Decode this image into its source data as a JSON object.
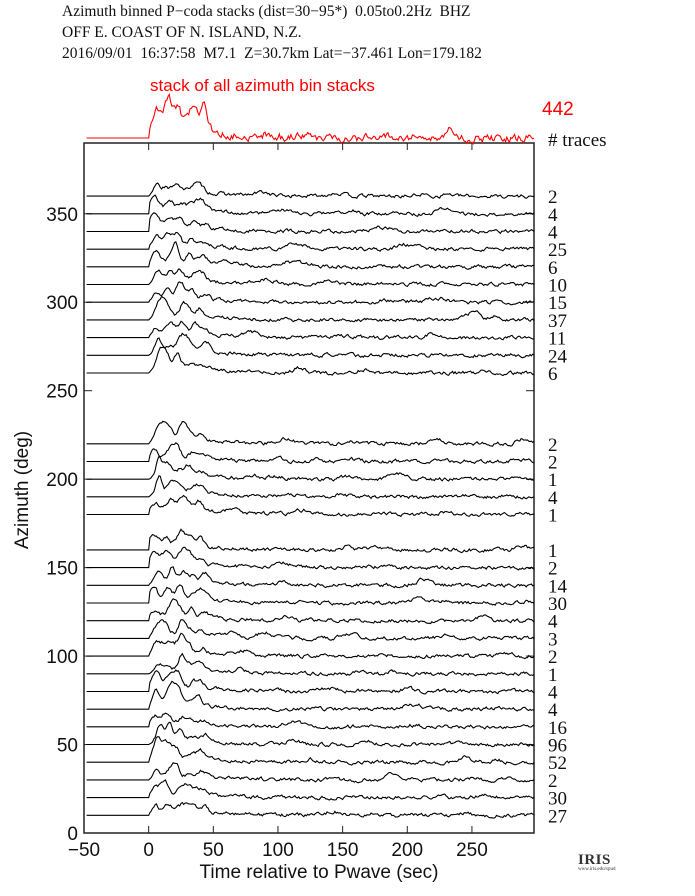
{
  "header": {
    "line1": "Azimuth binned P−coda stacks (dist=30−95*)  0.05to0.2Hz  BHZ",
    "line2": "OFF E. COAST OF N. ISLAND, N.Z.",
    "line3": "2016/09/01  16:37:58  M7.1  Z=30.7km Lat=−37.461 Lon=179.182"
  },
  "logo": {
    "name": "IRIS",
    "url_text": "www.iris.edu/spud"
  },
  "chart_data": {
    "type": "line",
    "title": "Azimuth binned P-coda stacks",
    "xlabel": "Time relative to Pwave (sec)",
    "ylabel": "Azimuth (deg)",
    "xlim": [
      -50,
      298
    ],
    "ylim": [
      0,
      390
    ],
    "xticks": [
      -50,
      0,
      50,
      100,
      150,
      200,
      250
    ],
    "yticks": [
      0,
      50,
      100,
      150,
      200,
      250,
      300,
      350
    ],
    "trace_color": "#000000",
    "stack": {
      "label": "stack of all azimuth bin stacks",
      "count": "442",
      "color": "#ff0000"
    },
    "count_header": "# traces",
    "traces": [
      {
        "azimuth": 360,
        "count": "2"
      },
      {
        "azimuth": 350,
        "count": "4"
      },
      {
        "azimuth": 340,
        "count": "4"
      },
      {
        "azimuth": 330,
        "count": "25"
      },
      {
        "azimuth": 320,
        "count": "6"
      },
      {
        "azimuth": 310,
        "count": "10"
      },
      {
        "azimuth": 300,
        "count": "15"
      },
      {
        "azimuth": 290,
        "count": "37"
      },
      {
        "azimuth": 280,
        "count": "11"
      },
      {
        "azimuth": 270,
        "count": "24"
      },
      {
        "azimuth": 260,
        "count": "6"
      },
      {
        "azimuth": 220,
        "count": "2"
      },
      {
        "azimuth": 210,
        "count": "2"
      },
      {
        "azimuth": 200,
        "count": "1"
      },
      {
        "azimuth": 190,
        "count": "4"
      },
      {
        "azimuth": 180,
        "count": "1"
      },
      {
        "azimuth": 160,
        "count": "1"
      },
      {
        "azimuth": 150,
        "count": "2"
      },
      {
        "azimuth": 140,
        "count": "14"
      },
      {
        "azimuth": 130,
        "count": "30"
      },
      {
        "azimuth": 120,
        "count": "4"
      },
      {
        "azimuth": 110,
        "count": "3"
      },
      {
        "azimuth": 100,
        "count": "2"
      },
      {
        "azimuth": 90,
        "count": "1"
      },
      {
        "azimuth": 80,
        "count": "4"
      },
      {
        "azimuth": 70,
        "count": "4"
      },
      {
        "azimuth": 60,
        "count": "16"
      },
      {
        "azimuth": 50,
        "count": "96"
      },
      {
        "azimuth": 40,
        "count": "52"
      },
      {
        "azimuth": 30,
        "count": "2"
      },
      {
        "azimuth": 20,
        "count": "30"
      },
      {
        "azimuth": 10,
        "count": "27"
      }
    ]
  }
}
